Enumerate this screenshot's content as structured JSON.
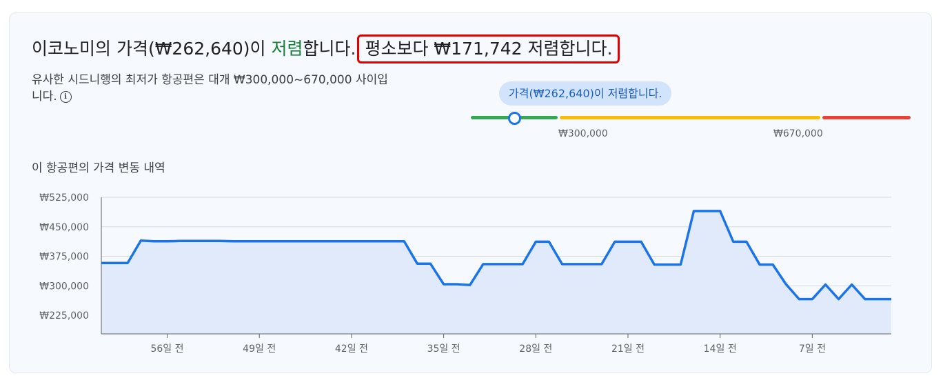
{
  "headline": {
    "prefix": "이코노미의 가격(₩262,640)이 ",
    "status_word": "저렴",
    "suffix": "합니다.",
    "highlight": "평소보다 ₩171,742 저렴합니다."
  },
  "range_description": "유사한 시드니행의 최저가 항공편은 대개 ₩300,000~670,000 사이입니다.",
  "info_icon": "info-icon",
  "price_chip": "가격(₩262,640)이 저렴합니다.",
  "gauge": {
    "low_label": "₩300,000",
    "high_label": "₩670,000",
    "colors": {
      "low": "#34a853",
      "typical": "#fbbc04",
      "high": "#ea4335",
      "marker": "#1a73e8"
    }
  },
  "history_title": "이 항공편의 가격 변동 내역",
  "chart_data": {
    "type": "area",
    "color": "#1a73e8",
    "fill": "#e1eafb",
    "y_ticks": [
      {
        "value": 525000,
        "label": "₩525,000"
      },
      {
        "value": 450000,
        "label": "₩450,000"
      },
      {
        "value": 375000,
        "label": "₩375,000"
      },
      {
        "value": 300000,
        "label": "₩300,000"
      },
      {
        "value": 225000,
        "label": "₩225,000"
      }
    ],
    "x_ticks": [
      {
        "value": 56,
        "label": "56일 전"
      },
      {
        "value": 49,
        "label": "49일 전"
      },
      {
        "value": 42,
        "label": "42일 전"
      },
      {
        "value": 35,
        "label": "35일 전"
      },
      {
        "value": 28,
        "label": "28일 전"
      },
      {
        "value": 21,
        "label": "21일 전"
      },
      {
        "value": 14,
        "label": "14일 전"
      },
      {
        "value": 7,
        "label": "7일 전"
      }
    ],
    "xlim": [
      61,
      1
    ],
    "ylim": [
      180000,
      530000
    ],
    "x_unit": "일 전",
    "points": [
      [
        61,
        358000
      ],
      [
        60,
        358000
      ],
      [
        59,
        358000
      ],
      [
        58,
        415000
      ],
      [
        57,
        413000
      ],
      [
        56,
        413000
      ],
      [
        55,
        414000
      ],
      [
        54,
        414000
      ],
      [
        53,
        414000
      ],
      [
        52,
        414000
      ],
      [
        51,
        413000
      ],
      [
        50,
        413000
      ],
      [
        49,
        413000
      ],
      [
        48,
        413000
      ],
      [
        47,
        413000
      ],
      [
        46,
        413000
      ],
      [
        45,
        413000
      ],
      [
        44,
        413000
      ],
      [
        43,
        413000
      ],
      [
        42,
        413000
      ],
      [
        41,
        413000
      ],
      [
        40,
        413000
      ],
      [
        39,
        413000
      ],
      [
        38,
        413000
      ],
      [
        37,
        356000
      ],
      [
        36,
        356000
      ],
      [
        35,
        304000
      ],
      [
        34,
        304000
      ],
      [
        33,
        302000
      ],
      [
        32,
        355000
      ],
      [
        31,
        355000
      ],
      [
        30,
        355000
      ],
      [
        29,
        355000
      ],
      [
        28,
        412000
      ],
      [
        27,
        412000
      ],
      [
        26,
        355000
      ],
      [
        25,
        355000
      ],
      [
        24,
        355000
      ],
      [
        23,
        355000
      ],
      [
        22,
        412000
      ],
      [
        21,
        412000
      ],
      [
        20,
        412000
      ],
      [
        19,
        354000
      ],
      [
        18,
        354000
      ],
      [
        17,
        354000
      ],
      [
        16,
        490000
      ],
      [
        15,
        490000
      ],
      [
        14,
        490000
      ],
      [
        13,
        412000
      ],
      [
        12,
        412000
      ],
      [
        11,
        354000
      ],
      [
        10,
        354000
      ],
      [
        9,
        304000
      ],
      [
        8,
        266000
      ],
      [
        7,
        266000
      ],
      [
        6,
        303000
      ],
      [
        5,
        266000
      ],
      [
        4,
        303000
      ],
      [
        3,
        266000
      ],
      [
        2,
        266000
      ],
      [
        1,
        266000
      ]
    ]
  }
}
